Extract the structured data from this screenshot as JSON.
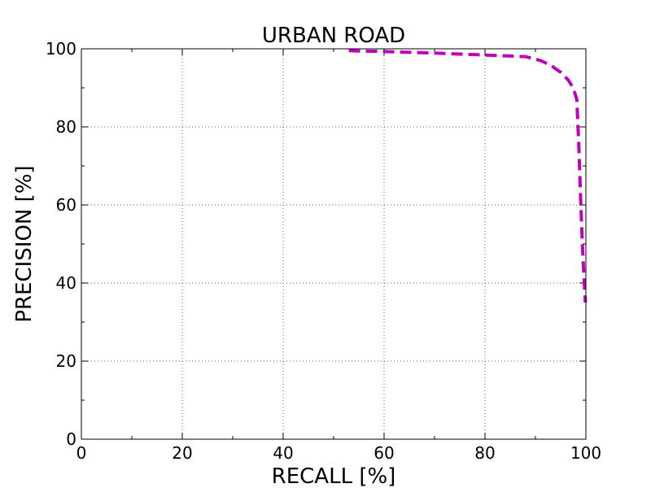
{
  "chart_data": {
    "type": "line",
    "title": "URBAN ROAD",
    "xlabel": "RECALL [%]",
    "ylabel": "PRECISION [%]",
    "xlim": [
      0,
      100
    ],
    "ylim": [
      0,
      100
    ],
    "x_major_ticks": [
      0,
      20,
      40,
      60,
      80,
      100
    ],
    "x_minor_ticks": [
      10,
      30,
      50,
      70,
      90
    ],
    "y_major_ticks": [
      0,
      20,
      40,
      60,
      80,
      100
    ],
    "y_minor_ticks": [
      10,
      30,
      50,
      70,
      90
    ],
    "x_tick_labels": [
      "0",
      "20",
      "40",
      "60",
      "80",
      "100"
    ],
    "y_tick_labels": [
      "0",
      "20",
      "40",
      "60",
      "80",
      "100"
    ],
    "grid": true,
    "series": [
      {
        "color": "#bf00bf",
        "style": "dashed",
        "x": [
          53,
          60,
          70,
          80,
          88,
          91,
          93,
          95,
          96.5,
          97.5,
          98.2,
          98.6,
          99.0,
          99.3,
          99.6,
          99.9
        ],
        "y": [
          99.5,
          99.3,
          98.9,
          98.4,
          98.0,
          97.0,
          95.8,
          94.0,
          92.0,
          90.0,
          87.0,
          75.0,
          60.0,
          50.0,
          42.0,
          35.0
        ]
      }
    ]
  }
}
